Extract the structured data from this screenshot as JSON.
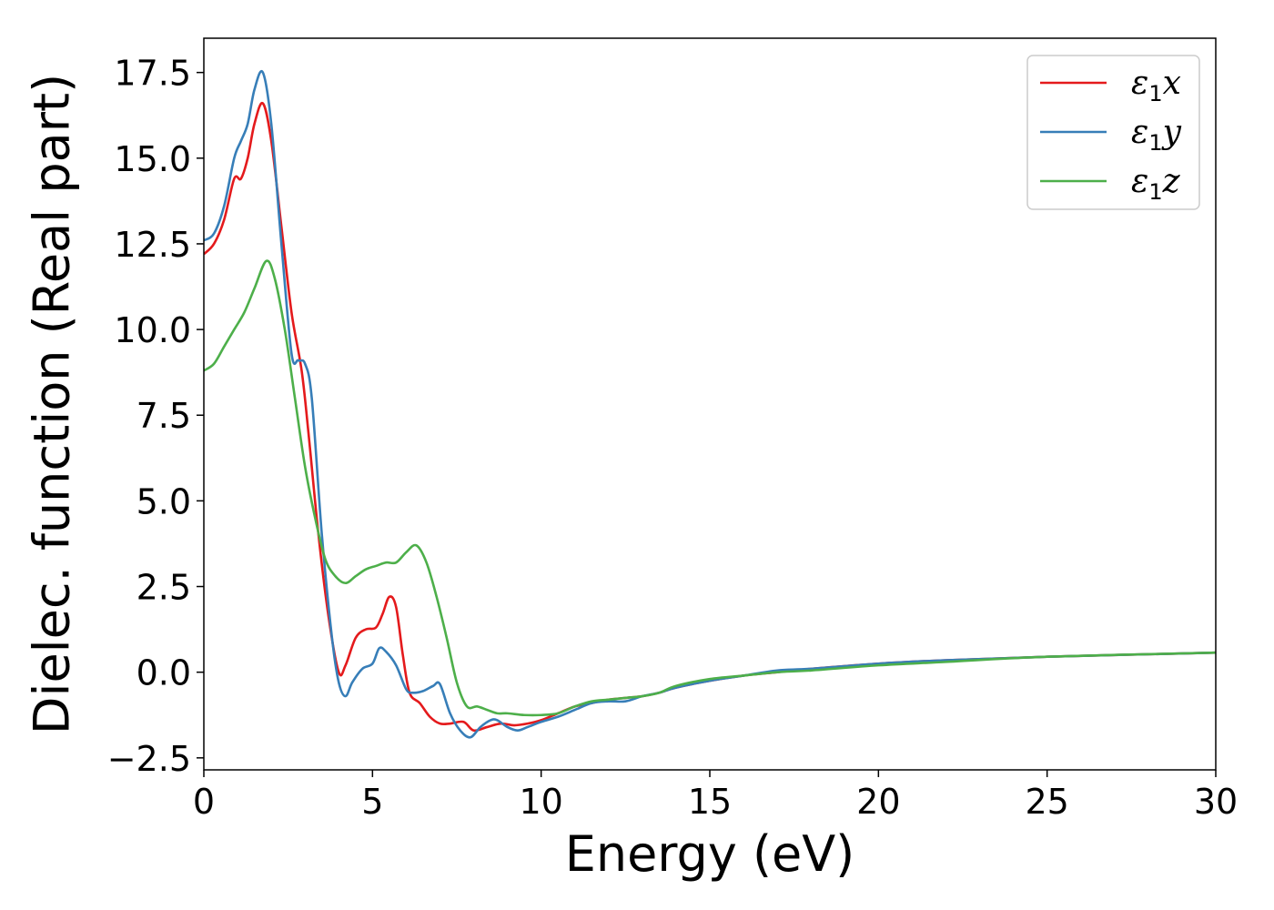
{
  "chart_data": {
    "type": "line",
    "xlabel": "Energy (eV)",
    "ylabel": "Dielec. function (Real part)",
    "xlim": [
      0,
      30
    ],
    "ylim": [
      -2.85,
      18.5
    ],
    "xticks": [
      0,
      5,
      10,
      15,
      20,
      25,
      30
    ],
    "xtick_labels": [
      "0",
      "5",
      "10",
      "15",
      "20",
      "25",
      "30"
    ],
    "yticks": [
      -2.5,
      0,
      2.5,
      5,
      7.5,
      10,
      12.5,
      15,
      17.5
    ],
    "ytick_labels": [
      "−2.5",
      "0.0",
      "2.5",
      "5.0",
      "7.5",
      "10.0",
      "12.5",
      "15.0",
      "17.5"
    ],
    "grid": false,
    "legend_position": "top-right",
    "series": [
      {
        "name": "ε1x",
        "legend": {
          "base": "ε",
          "sub": "1",
          "suffix": "x"
        },
        "color": "#e41a1c",
        "x": [
          0,
          0.3,
          0.6,
          0.9,
          1.1,
          1.3,
          1.5,
          1.75,
          2.0,
          2.3,
          2.6,
          2.9,
          3.1,
          3.4,
          3.7,
          4.0,
          4.2,
          4.5,
          4.8,
          5.1,
          5.3,
          5.5,
          5.7,
          5.9,
          6.1,
          6.4,
          6.7,
          7.0,
          7.3,
          7.7,
          8.0,
          8.4,
          8.8,
          9.2,
          9.6,
          10,
          10.5,
          11,
          11.5,
          12,
          12.5,
          13,
          13.5,
          14,
          15,
          16,
          17,
          18,
          20,
          22,
          25,
          30
        ],
        "y": [
          12.2,
          12.5,
          13.2,
          14.4,
          14.4,
          15.0,
          16.0,
          16.6,
          15.5,
          13.0,
          10.5,
          8.8,
          7.0,
          4.0,
          1.6,
          0.0,
          0.2,
          1.0,
          1.25,
          1.3,
          1.7,
          2.2,
          1.9,
          0.5,
          -0.6,
          -0.9,
          -1.3,
          -1.5,
          -1.5,
          -1.45,
          -1.7,
          -1.6,
          -1.5,
          -1.55,
          -1.5,
          -1.4,
          -1.2,
          -1.0,
          -0.9,
          -0.8,
          -0.75,
          -0.7,
          -0.6,
          -0.45,
          -0.25,
          -0.1,
          0.0,
          0.1,
          0.25,
          0.35,
          0.45,
          0.57
        ]
      },
      {
        "name": "ε1y",
        "legend": {
          "base": "ε",
          "sub": "1",
          "suffix": "y"
        },
        "color": "#377eb8",
        "x": [
          0,
          0.3,
          0.6,
          0.9,
          1.1,
          1.3,
          1.5,
          1.75,
          2.0,
          2.3,
          2.6,
          2.8,
          3.0,
          3.2,
          3.5,
          3.8,
          4.0,
          4.2,
          4.4,
          4.7,
          5.0,
          5.2,
          5.4,
          5.7,
          6.0,
          6.2,
          6.5,
          6.8,
          7.0,
          7.3,
          7.6,
          7.9,
          8.2,
          8.5,
          8.7,
          9.0,
          9.3,
          9.6,
          10,
          10.5,
          11,
          11.5,
          12,
          12.5,
          13,
          13.5,
          14,
          15,
          16,
          17,
          18,
          20,
          22,
          25,
          30
        ],
        "y": [
          12.6,
          12.8,
          13.6,
          15.0,
          15.5,
          16.0,
          17.0,
          17.5,
          16.0,
          12.5,
          9.3,
          9.1,
          9.0,
          8.0,
          4.0,
          1.0,
          -0.3,
          -0.7,
          -0.3,
          0.1,
          0.25,
          0.7,
          0.6,
          0.2,
          -0.5,
          -0.6,
          -0.55,
          -0.4,
          -0.35,
          -1.2,
          -1.7,
          -1.9,
          -1.6,
          -1.4,
          -1.4,
          -1.6,
          -1.7,
          -1.6,
          -1.45,
          -1.3,
          -1.1,
          -0.9,
          -0.85,
          -0.85,
          -0.7,
          -0.6,
          -0.45,
          -0.25,
          -0.1,
          0.05,
          0.1,
          0.25,
          0.35,
          0.45,
          0.57
        ]
      },
      {
        "name": "ε1z",
        "legend": {
          "base": "ε",
          "sub": "1",
          "suffix": "z"
        },
        "color": "#4daf4a",
        "x": [
          0,
          0.3,
          0.6,
          0.9,
          1.2,
          1.5,
          1.85,
          2.1,
          2.4,
          2.7,
          3.0,
          3.3,
          3.6,
          3.9,
          4.2,
          4.5,
          4.8,
          5.1,
          5.4,
          5.7,
          6.0,
          6.3,
          6.6,
          6.9,
          7.2,
          7.5,
          7.8,
          8.1,
          8.4,
          8.7,
          9.0,
          9.5,
          10,
          10.5,
          11,
          11.5,
          12,
          12.5,
          13,
          13.5,
          14,
          15,
          16,
          17,
          18,
          20,
          22,
          25,
          30
        ],
        "y": [
          8.8,
          9.0,
          9.5,
          10.0,
          10.5,
          11.2,
          12.0,
          11.5,
          10.0,
          8.0,
          6.0,
          4.5,
          3.3,
          2.8,
          2.6,
          2.8,
          3.0,
          3.1,
          3.2,
          3.2,
          3.5,
          3.7,
          3.2,
          2.2,
          1.0,
          -0.3,
          -1.0,
          -1.0,
          -1.1,
          -1.2,
          -1.2,
          -1.25,
          -1.25,
          -1.2,
          -1.0,
          -0.85,
          -0.8,
          -0.75,
          -0.7,
          -0.6,
          -0.4,
          -0.2,
          -0.1,
          0.0,
          0.05,
          0.2,
          0.3,
          0.45,
          0.57
        ]
      }
    ]
  }
}
